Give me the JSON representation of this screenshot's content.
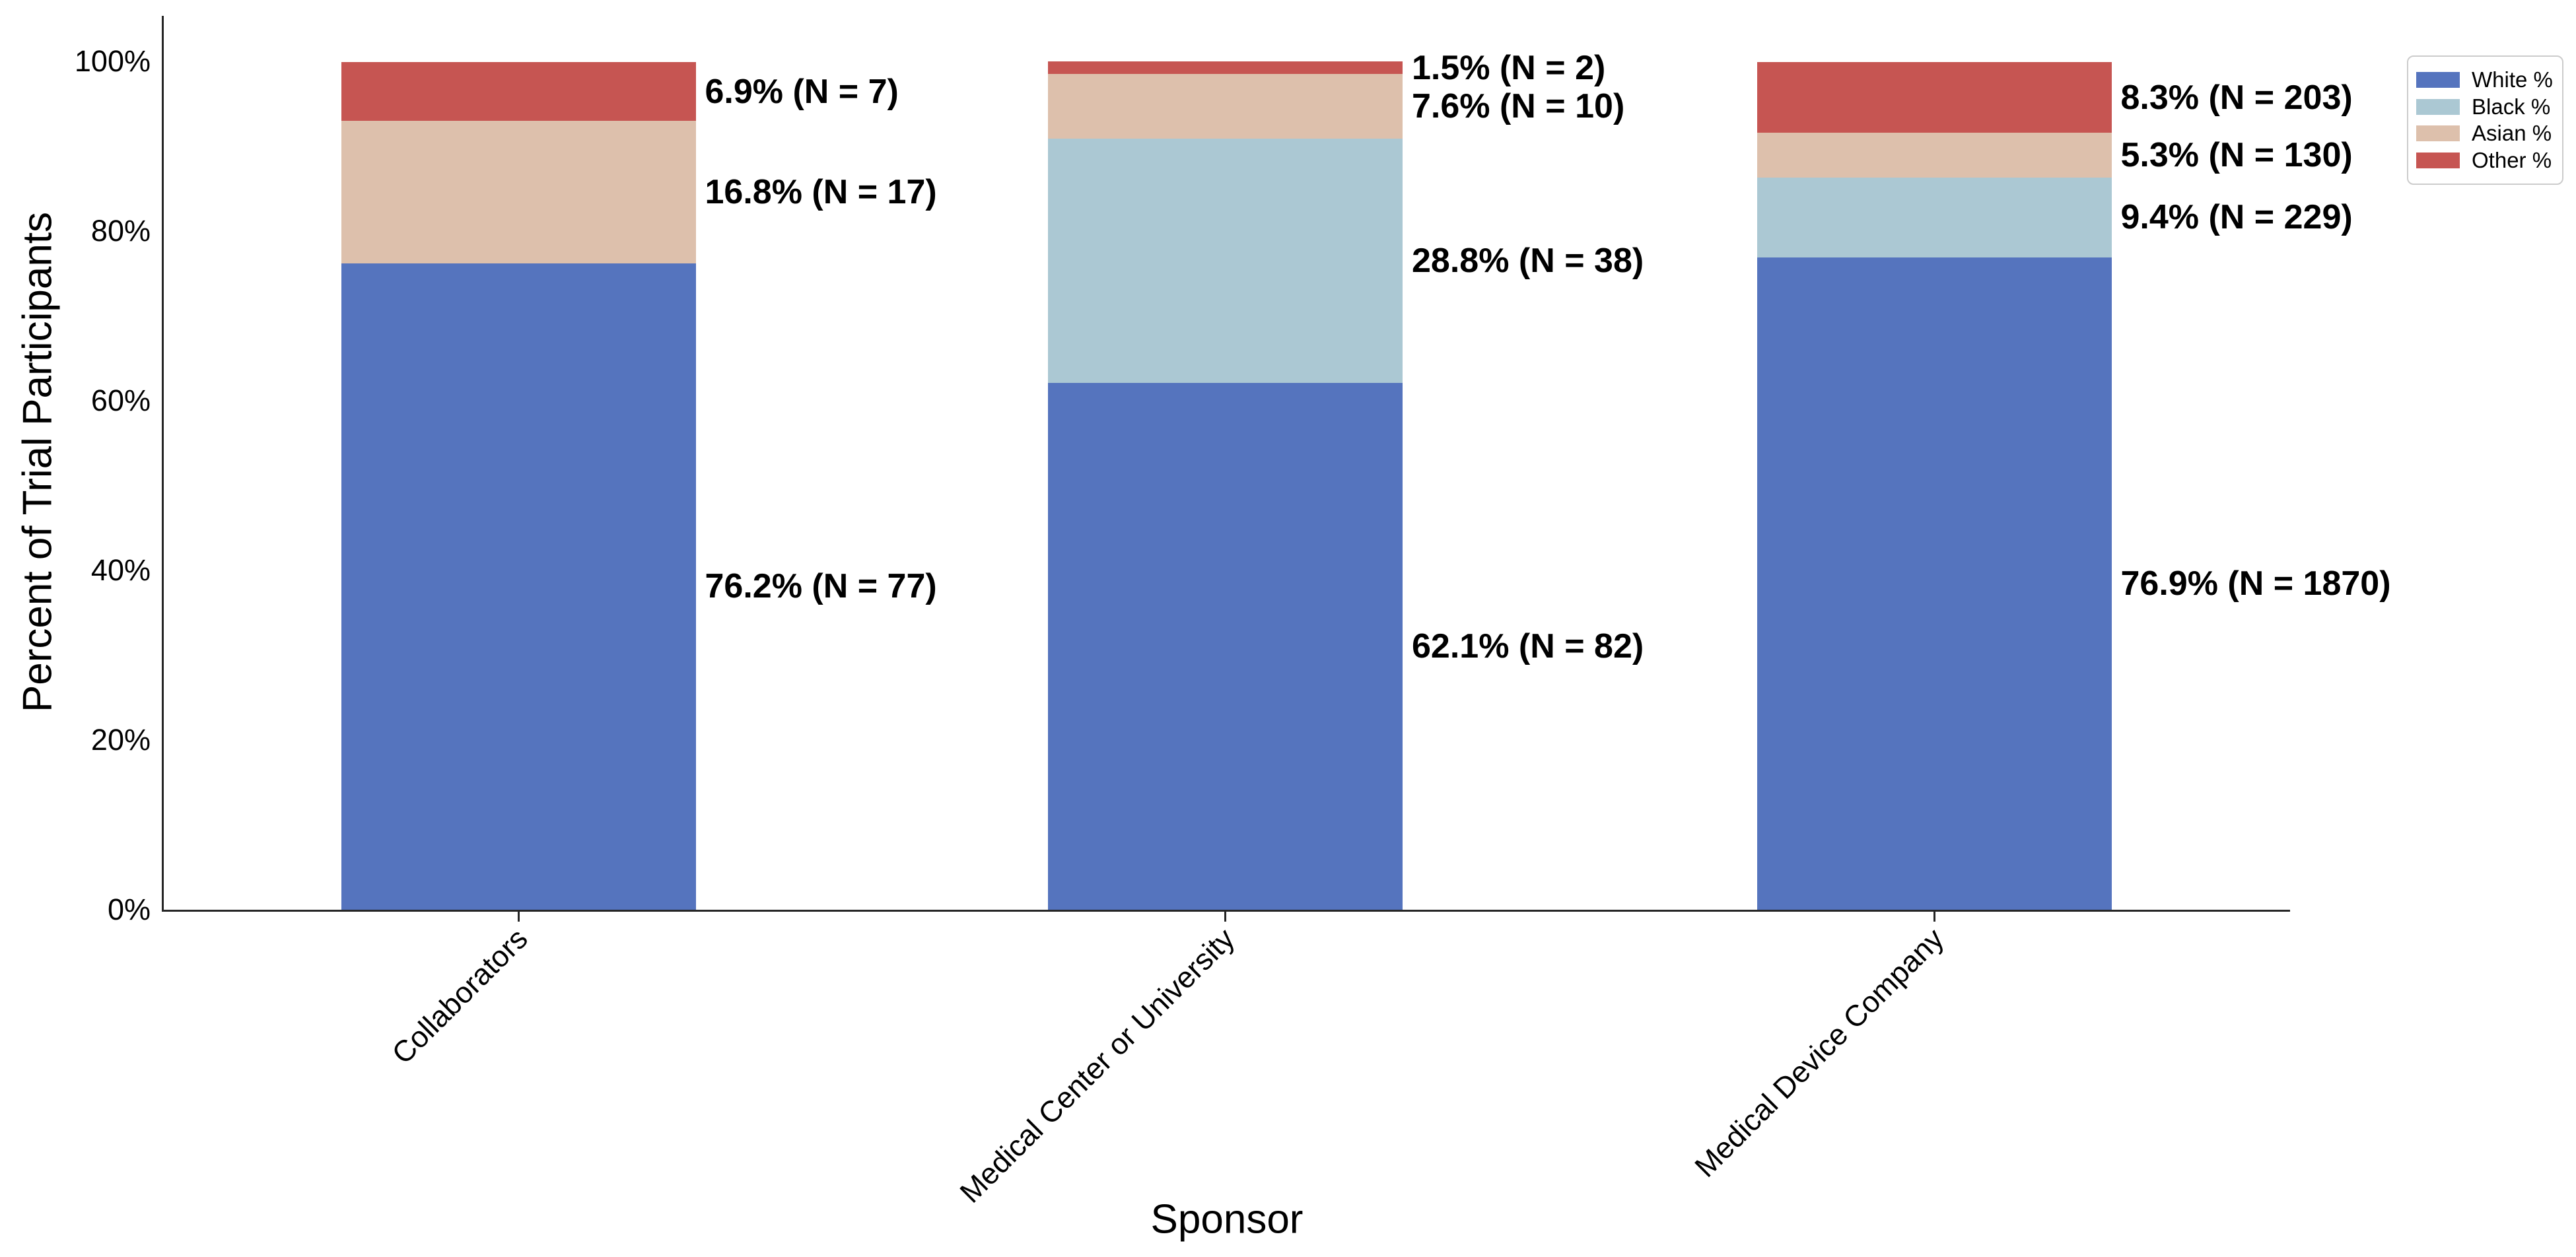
{
  "chart_data": {
    "type": "bar",
    "stacked": true,
    "title": "",
    "xlabel": "Sponsor",
    "ylabel": "Percent of Trial Participants",
    "categories": [
      "Collaborators",
      "Medical Center or University",
      "Medical Device Company"
    ],
    "series": [
      {
        "name": "White %",
        "color": "#5574be",
        "values": [
          76.2,
          62.1,
          76.9
        ],
        "labels": [
          "76.2% (N = 77)",
          "62.1% (N = 82)",
          "76.9% (N = 1870)"
        ]
      },
      {
        "name": "Black %",
        "color": "#abc8d3",
        "values": [
          0.0,
          28.8,
          9.4
        ],
        "labels": [
          null,
          "28.8% (N = 38)",
          "9.4% (N = 229)"
        ]
      },
      {
        "name": "Asian %",
        "color": "#ddc0ac",
        "values": [
          16.8,
          7.6,
          5.3
        ],
        "labels": [
          "16.8% (N = 17)",
          "7.6% (N = 10)",
          "5.3% (N = 130)"
        ]
      },
      {
        "name": "Other %",
        "color": "#c65552",
        "values": [
          6.9,
          1.5,
          8.3
        ],
        "labels": [
          "6.9% (N = 7)",
          "1.5% (N = 2)",
          "8.3% (N = 203)"
        ]
      }
    ],
    "y_ticks": [
      "0%",
      "20%",
      "40%",
      "60%",
      "80%",
      "100%"
    ],
    "ylim": [
      0,
      105
    ],
    "grid": false,
    "legend_position": "upper right",
    "legend_entries": [
      "White %",
      "Black %",
      "Asian %",
      "Other %"
    ]
  },
  "style": {
    "axis_color": "#262626",
    "text_color": "#000000",
    "legend_border_color": "#cccccc",
    "background_color": "#ffffff"
  }
}
